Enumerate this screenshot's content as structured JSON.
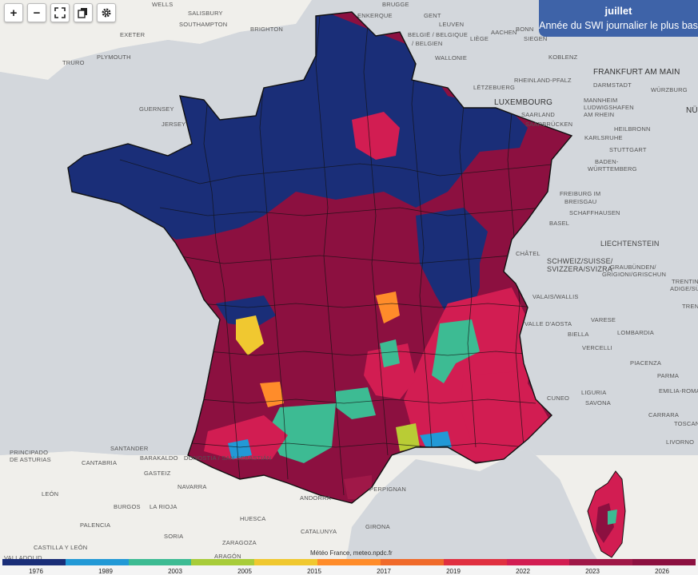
{
  "toolbar": {
    "zoom_in": "+",
    "zoom_out": "−",
    "fullscreen_icon": "fullscreen-icon",
    "layers_icon": "layers-icon",
    "settings_icon": "gear-icon"
  },
  "info": {
    "title": "juillet",
    "subtitle": "Année du SWI journalier le plus bas"
  },
  "attribution": "Météo France, meteo.npdc.fr",
  "colors": {
    "sea": "#d3d7dc",
    "land": "#f0efeb",
    "dark_blue": "#1a2e78",
    "maroon": "#8c1040",
    "crimson": "#d21d52",
    "green": "#3dbb93",
    "sky": "#2299d6",
    "orange": "#ff8c2a",
    "yellow": "#f0c830"
  },
  "legend": {
    "colors": [
      "#1a2e78",
      "#2299d6",
      "#3dbb93",
      "#a8cc3a",
      "#f0c830",
      "#ff8c2a",
      "#f06a2a",
      "#e03040",
      "#d21d52",
      "#a01848",
      "#8c1040"
    ],
    "ticks": [
      "1976",
      "1989",
      "2003",
      "2005",
      "2015",
      "2017",
      "2019",
      "2022",
      "2023",
      "2026"
    ]
  },
  "places": {
    "wells": "WELLS",
    "salisbury": "SALISBURY",
    "southampton": "SOUTHAMPTON",
    "brighton": "BRIGHTON",
    "exeter": "EXETER",
    "plymouth": "PLYMOUTH",
    "truro": "TRURO",
    "guernsey": "GUERNSEY",
    "jersey": "JERSEY",
    "brugge": "BRUGGE",
    "enkerque": "ENKERQUE",
    "gent": "GENT",
    "leuven": "LEUVEN",
    "belgie": "BELGIË / BELGIQUE",
    "belgien": "/ BELGIEN",
    "liege": "LIÈGE",
    "aachen": "AACHEN",
    "wallonie": "WALLONIE",
    "bonn": "BONN",
    "siegen": "SIEGEN",
    "koblenz": "KOBLENZ",
    "frankfurt": "FRANKFURT AM MAIN",
    "darmstadt": "DARMSTADT",
    "wurzburg": "WÜRZBURG",
    "rheinland": "RHEINLAND-PFALZ",
    "letzebuerg": "LËTZEBUERG",
    "luxembourg": "LUXEMBOURG",
    "mannheim": "MANNHEIM",
    "ludwigshafen": "LUDWIGSHAFEN",
    "am_rhein": "AM RHEIN",
    "saarland": "SAARLAND",
    "saarbrucken": "SAARBRÜCKEN",
    "heilbronn": "HEILBRONN",
    "karlsruhe": "KARLSRUHE",
    "stuttgart": "STUTTGART",
    "baden": "BADEN-",
    "wurttemberg": "WÜRTTEMBERG",
    "freiburg": "FREIBURG IM",
    "breisgau": "BREISGAU",
    "schaffhausen": "SCHAFFHAUSEN",
    "basel": "BASEL",
    "liechtenstein": "LIECHTENSTEIN",
    "schweiz": "SCHWEIZ/SUISSE/",
    "svizzera": "SVIZZERA/SVIZRA",
    "graubunden": "GRAUBÜNDEN/",
    "grigioni": "GRIGIONI/GRISCHUN",
    "trentino": "TRENTINO-",
    "adige": "ADIGE/SÜD",
    "trent": "TREN",
    "valais": "VALAIS/WALLIS",
    "chatel": "CHÂTEL",
    "aosta": "VALLE D'AOSTA",
    "varese": "VARESE",
    "biella": "BIELLA",
    "lombardia": "LOMBARDIA",
    "vercelli": "VERCELLI",
    "piacenza": "PIACENZA",
    "parma": "PARMA",
    "emilia": "EMILIA-ROMAGNA",
    "cuneo": "CUNEO",
    "liguria": "LIGURIA",
    "savona": "SAVONA",
    "carrara": "CARRARA",
    "toscana": "TOSCANA",
    "livorno": "LIVORNO",
    "principado": "PRINCIPADO",
    "asturias": "DE ASTURIAS",
    "santander": "SANTANDER",
    "cantabria": "CANTABRIA",
    "barakaldo": "BARAKALDO",
    "donostia": "DONOSTIA / SAN SEBASTIÁN",
    "gasteiz": "GASTEIZ",
    "leon": "LEÓN",
    "navarra": "NAVARRA",
    "burgos": "BURGOS",
    "la_rioja": "LA RIOJA",
    "palencia": "PALENCIA",
    "huesca": "HUESCA",
    "zaragoza": "ZARAGOZA",
    "castilla": "CASTILLA Y LEÓN",
    "soria": "SORIA",
    "aragon": "ARAGÓN",
    "catalunya": "CATALUNYA",
    "girona": "GIRONA",
    "andorra": "ANDORRA",
    "perpignan": "PERPIGNAN",
    "no": "NÜ",
    "valladolid": "VALLADOLID"
  }
}
